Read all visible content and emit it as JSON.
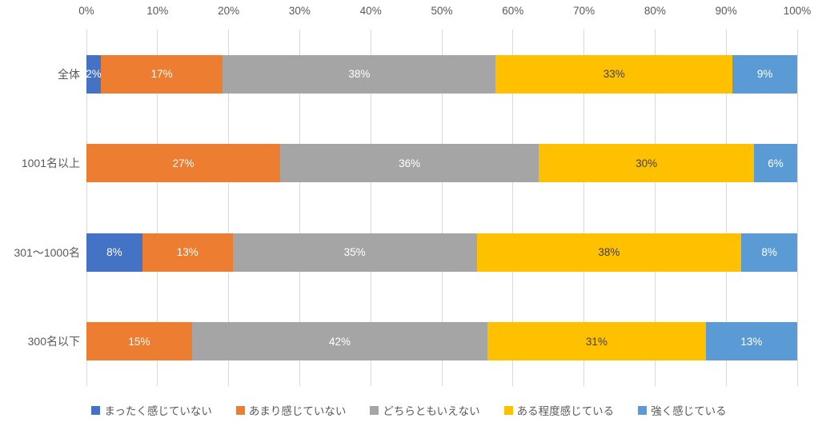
{
  "chart_data": {
    "type": "bar",
    "orientation": "horizontal",
    "stacked": true,
    "title": "",
    "xlabel": "",
    "ylabel": "",
    "categories": [
      "全体",
      "1001名以上",
      "301〜1000名",
      "300名以下"
    ],
    "series": [
      {
        "name": "まったく感じていない",
        "color": "#4472C4",
        "label_color": "#FFFFFF",
        "values": [
          2,
          0,
          8,
          0
        ]
      },
      {
        "name": "あまり感じていない",
        "color": "#ED7D31",
        "label_color": "#FFFFFF",
        "values": [
          17,
          27,
          13,
          15
        ]
      },
      {
        "name": "どちらともいえない",
        "color": "#A5A5A5",
        "label_color": "#FFFFFF",
        "values": [
          38,
          36,
          35,
          42
        ]
      },
      {
        "name": "ある程度感じている",
        "color": "#FFC000",
        "label_color": "#404040",
        "values": [
          33,
          30,
          38,
          31
        ]
      },
      {
        "name": "強く感じている",
        "color": "#5B9BD5",
        "label_color": "#FFFFFF",
        "values": [
          9,
          6,
          8,
          13
        ]
      }
    ],
    "x_axis": {
      "min": 0,
      "max": 100,
      "tick_labels": [
        "0%",
        "10%",
        "20%",
        "30%",
        "40%",
        "50%",
        "60%",
        "70%",
        "80%",
        "90%",
        "100%"
      ]
    },
    "data_label_suffix": "%",
    "legend_position": "bottom",
    "grid": true,
    "gridline_color": "#D9D9D9",
    "axis_text_color": "#595959"
  }
}
